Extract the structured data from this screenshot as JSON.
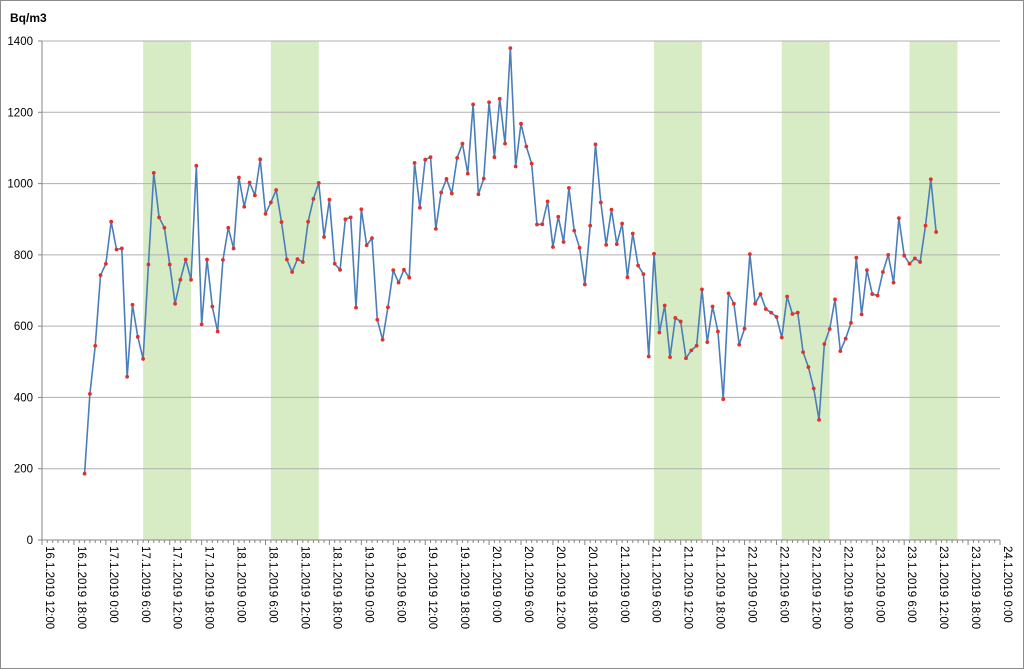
{
  "chart_data": {
    "type": "line",
    "title": "",
    "ylabel": "Bq/m3",
    "xlabel": "",
    "ylim": [
      0,
      1400
    ],
    "yticks": [
      0,
      200,
      400,
      600,
      800,
      1000,
      1200,
      1400
    ],
    "grid": true,
    "legend": "none",
    "xlim_hours": [
      0,
      180
    ],
    "x_tick_every_hours": 6,
    "x_tick_labels": [
      "16.1.2019 12:00",
      "16.1.2019 18:00",
      "17.1.2019 0:00",
      "17.1.2019 6:00",
      "17.1.2019 12:00",
      "17.1.2019 18:00",
      "18.1.2019 0:00",
      "18.1.2019 6:00",
      "18.1.2019 12:00",
      "18.1.2019 18:00",
      "19.1.2019 0:00",
      "19.1.2019 6:00",
      "19.1.2019 12:00",
      "19.1.2019 18:00",
      "20.1.2019 0:00",
      "20.1.2019 6:00",
      "20.1.2019 12:00",
      "20.1.2019 18:00",
      "21.1.2019 0:00",
      "21.1.2019 6:00",
      "21.1.2019 12:00",
      "21.1.2019 18:00",
      "22.1.2019 0:00",
      "22.1.2019 6:00",
      "22.1.2019 12:00",
      "22.1.2019 18:00",
      "23.1.2019 0:00",
      "23.1.2019 6:00",
      "23.1.2019 12:00",
      "23.1.2019 18:00",
      "24.1.2019 0:00"
    ],
    "highlight_bands_hours": [
      [
        19,
        28
      ],
      [
        43,
        52
      ],
      [
        115,
        124
      ],
      [
        139,
        148
      ],
      [
        163,
        172
      ]
    ],
    "colors": {
      "line": "#4a7ebb",
      "marker": "#e0312b",
      "band": "#d7ecc4",
      "grid": "#b0b0b0",
      "axis": "#868686"
    },
    "series": [
      {
        "values": [
          [
            8,
            186
          ],
          [
            9,
            410
          ],
          [
            10,
            545
          ],
          [
            11,
            743
          ],
          [
            12,
            775
          ],
          [
            13,
            893
          ],
          [
            14,
            815
          ],
          [
            15,
            818
          ],
          [
            16,
            458
          ],
          [
            17,
            660
          ],
          [
            18,
            570
          ],
          [
            19,
            508
          ],
          [
            20,
            773
          ],
          [
            21,
            1030
          ],
          [
            22,
            905
          ],
          [
            23,
            876
          ],
          [
            24,
            773
          ],
          [
            25,
            663
          ],
          [
            26,
            730
          ],
          [
            27,
            787
          ],
          [
            28,
            730
          ],
          [
            29,
            1050
          ],
          [
            30,
            605
          ],
          [
            31,
            787
          ],
          [
            32,
            655
          ],
          [
            33,
            585
          ],
          [
            34,
            786
          ],
          [
            35,
            876
          ],
          [
            36,
            818
          ],
          [
            37,
            1017
          ],
          [
            38,
            935
          ],
          [
            39,
            1003
          ],
          [
            40,
            967
          ],
          [
            41,
            1068
          ],
          [
            42,
            915
          ],
          [
            43,
            947
          ],
          [
            44,
            982
          ],
          [
            45,
            892
          ],
          [
            46,
            787
          ],
          [
            47,
            752
          ],
          [
            48,
            788
          ],
          [
            49,
            780
          ],
          [
            50,
            893
          ],
          [
            51,
            957
          ],
          [
            52,
            1002
          ],
          [
            53,
            850
          ],
          [
            54,
            955
          ],
          [
            55,
            775
          ],
          [
            56,
            758
          ],
          [
            57,
            900
          ],
          [
            58,
            905
          ],
          [
            59,
            652
          ],
          [
            60,
            928
          ],
          [
            61,
            827
          ],
          [
            62,
            847
          ],
          [
            63,
            618
          ],
          [
            64,
            562
          ],
          [
            65,
            653
          ],
          [
            66,
            757
          ],
          [
            67,
            722
          ],
          [
            68,
            758
          ],
          [
            69,
            736
          ],
          [
            70,
            1058
          ],
          [
            71,
            932
          ],
          [
            72,
            1067
          ],
          [
            73,
            1074
          ],
          [
            74,
            873
          ],
          [
            75,
            975
          ],
          [
            76,
            1013
          ],
          [
            77,
            972
          ],
          [
            78,
            1072
          ],
          [
            79,
            1112
          ],
          [
            80,
            1028
          ],
          [
            81,
            1222
          ],
          [
            82,
            970
          ],
          [
            83,
            1014
          ],
          [
            84,
            1228
          ],
          [
            85,
            1074
          ],
          [
            86,
            1238
          ],
          [
            87,
            1112
          ],
          [
            88,
            1380
          ],
          [
            89,
            1048
          ],
          [
            90,
            1168
          ],
          [
            91,
            1104
          ],
          [
            92,
            1056
          ],
          [
            93,
            885
          ],
          [
            94,
            886
          ],
          [
            95,
            950
          ],
          [
            96,
            822
          ],
          [
            97,
            907
          ],
          [
            98,
            836
          ],
          [
            99,
            988
          ],
          [
            100,
            868
          ],
          [
            101,
            820
          ],
          [
            102,
            717
          ],
          [
            103,
            882
          ],
          [
            104,
            1110
          ],
          [
            105,
            947
          ],
          [
            106,
            828
          ],
          [
            107,
            927
          ],
          [
            108,
            830
          ],
          [
            109,
            888
          ],
          [
            110,
            737
          ],
          [
            111,
            860
          ],
          [
            112,
            770
          ],
          [
            113,
            746
          ],
          [
            114,
            515
          ],
          [
            115,
            803
          ],
          [
            116,
            582
          ],
          [
            117,
            658
          ],
          [
            118,
            513
          ],
          [
            119,
            623
          ],
          [
            120,
            613
          ],
          [
            121,
            510
          ],
          [
            122,
            532
          ],
          [
            123,
            545
          ],
          [
            124,
            703
          ],
          [
            125,
            555
          ],
          [
            126,
            655
          ],
          [
            127,
            585
          ],
          [
            128,
            395
          ],
          [
            129,
            692
          ],
          [
            130,
            663
          ],
          [
            131,
            548
          ],
          [
            132,
            593
          ],
          [
            133,
            802
          ],
          [
            134,
            663
          ],
          [
            135,
            690
          ],
          [
            136,
            648
          ],
          [
            137,
            638
          ],
          [
            138,
            626
          ],
          [
            139,
            568
          ],
          [
            140,
            683
          ],
          [
            141,
            634
          ],
          [
            142,
            638
          ],
          [
            143,
            527
          ],
          [
            144,
            485
          ],
          [
            145,
            425
          ],
          [
            146,
            337
          ],
          [
            147,
            550
          ],
          [
            148,
            592
          ],
          [
            149,
            675
          ],
          [
            150,
            530
          ],
          [
            151,
            565
          ],
          [
            152,
            609
          ],
          [
            153,
            792
          ],
          [
            154,
            633
          ],
          [
            155,
            757
          ],
          [
            156,
            690
          ],
          [
            157,
            686
          ],
          [
            158,
            752
          ],
          [
            159,
            800
          ],
          [
            160,
            722
          ],
          [
            161,
            903
          ],
          [
            162,
            798
          ],
          [
            163,
            775
          ],
          [
            164,
            790
          ],
          [
            165,
            780
          ],
          [
            166,
            882
          ],
          [
            167,
            1012
          ],
          [
            168,
            864
          ]
        ]
      }
    ]
  }
}
